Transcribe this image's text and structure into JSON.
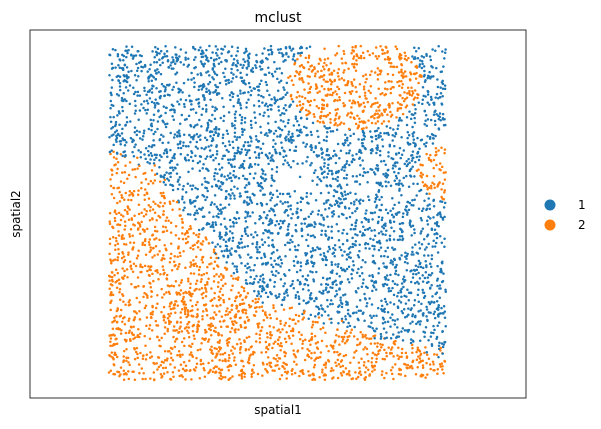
{
  "chart_data": {
    "type": "scatter",
    "title": "mclust",
    "xlabel": "spatial1",
    "ylabel": "spatial2",
    "grid": false,
    "ticks": false,
    "legend_position": "right",
    "categories": [
      "1",
      "2"
    ],
    "colors": {
      "1": "#1f77b4",
      "2": "#ff7f0e"
    },
    "xlim": [
      0,
      1
    ],
    "ylim": [
      0,
      1
    ],
    "regions": {
      "cluster_2_left_band_boundary": [
        [
          0.0,
          0.68
        ],
        [
          0.13,
          0.64
        ],
        [
          0.3,
          0.4
        ],
        [
          0.45,
          0.24
        ],
        [
          0.7,
          0.16
        ],
        [
          1.0,
          0.08
        ]
      ],
      "cluster_2_top_right_blob": {
        "cx": 0.73,
        "cy": 0.89,
        "rx": 0.2,
        "ry": 0.14
      },
      "cluster_2_right_edge_blob": {
        "cx": 1.0,
        "cy": 0.62,
        "rx": 0.09,
        "ry": 0.08
      }
    }
  }
}
